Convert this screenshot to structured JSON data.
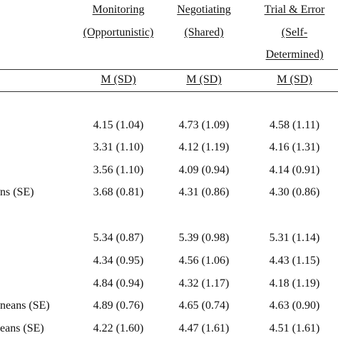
{
  "table": {
    "headers": [
      {
        "line1": "Monitoring",
        "line2": "(Opportunistic)"
      },
      {
        "line1": "Negotiating",
        "line2": "(Shared)"
      },
      {
        "line1": "Trial & Error",
        "line2": "(Self-",
        "line3": "Determined)"
      }
    ],
    "subheaders": [
      "M (SD)",
      "M (SD)",
      "M (SD)"
    ],
    "row_labels": [
      "",
      "",
      "",
      "ns (SE)",
      "",
      "",
      "",
      "neans (SE)",
      "eans (SE)"
    ],
    "rows": [
      [
        "4.15 (1.04)",
        "4.73 (1.09)",
        "4.58 (1.11)"
      ],
      [
        "3.31 (1.10)",
        "4.12 (1.19)",
        "4.16 (1.31)"
      ],
      [
        "3.56 (1.10)",
        "4.09 (0.94)",
        "4.14 (0.91)"
      ],
      [
        "3.68 (0.81)",
        "4.31 (0.86)",
        "4.30 (0.86)"
      ],
      [
        "5.34 (0.87)",
        "5.39 (0.98)",
        "5.31 (1.14)"
      ],
      [
        "4.34 (0.95)",
        "4.56 (1.06)",
        "4.43 (1.15)"
      ],
      [
        "4.84 (0.94)",
        "4.32 (1.17)",
        "4.18 (1.19)"
      ],
      [
        "4.89 (0.76)",
        "4.65 (0.74)",
        "4.63 (0.90)"
      ],
      [
        "4.22 (1.60)",
        "4.47 (1.61)",
        "4.51 (1.61)"
      ]
    ]
  }
}
